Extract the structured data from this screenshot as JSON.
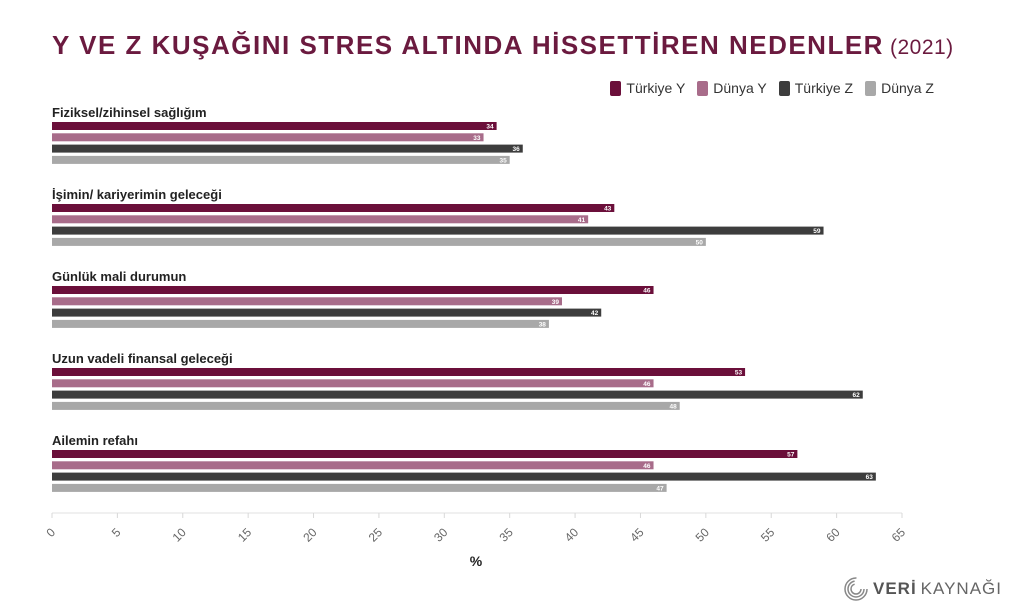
{
  "title": {
    "main": "Y VE Z KUŞAĞINI STRES ALTINDA HİSSETTİREN NEDENLER",
    "year": "(2021)"
  },
  "colors": {
    "turkiye_y": "#6b0f3a",
    "dunya_y": "#a86c8a",
    "turkiye_z": "#3d3d3d",
    "dunya_z": "#a8a8a8",
    "title": "#6b1a3f"
  },
  "logo": {
    "strong": "VERİ",
    "rest": "KAYNAĞI"
  },
  "chart_data": {
    "type": "bar",
    "orientation": "horizontal",
    "categories": [
      "Fiziksel/zihinsel sağlığım",
      "İşimin/ kariyerimin geleceği",
      "Günlük mali durumun",
      "Uzun vadeli finansal geleceği",
      "Ailemin refahı"
    ],
    "series": [
      {
        "name": "Türkiye Y",
        "color": "#6b0f3a",
        "values": [
          34,
          43,
          46,
          53,
          57
        ]
      },
      {
        "name": "Dünya Y",
        "color": "#a86c8a",
        "values": [
          33,
          41,
          39,
          46,
          46
        ]
      },
      {
        "name": "Türkiye Z",
        "color": "#3d3d3d",
        "values": [
          36,
          59,
          42,
          62,
          63
        ]
      },
      {
        "name": "Dünya Z",
        "color": "#a8a8a8",
        "values": [
          35,
          50,
          38,
          48,
          47
        ]
      }
    ],
    "xticks": [
      0,
      5,
      10,
      15,
      20,
      25,
      30,
      35,
      40,
      45,
      50,
      55,
      60,
      65
    ],
    "xlim": [
      0,
      65
    ],
    "xlabel": "%",
    "legend_position": "top-right",
    "grid": false
  }
}
